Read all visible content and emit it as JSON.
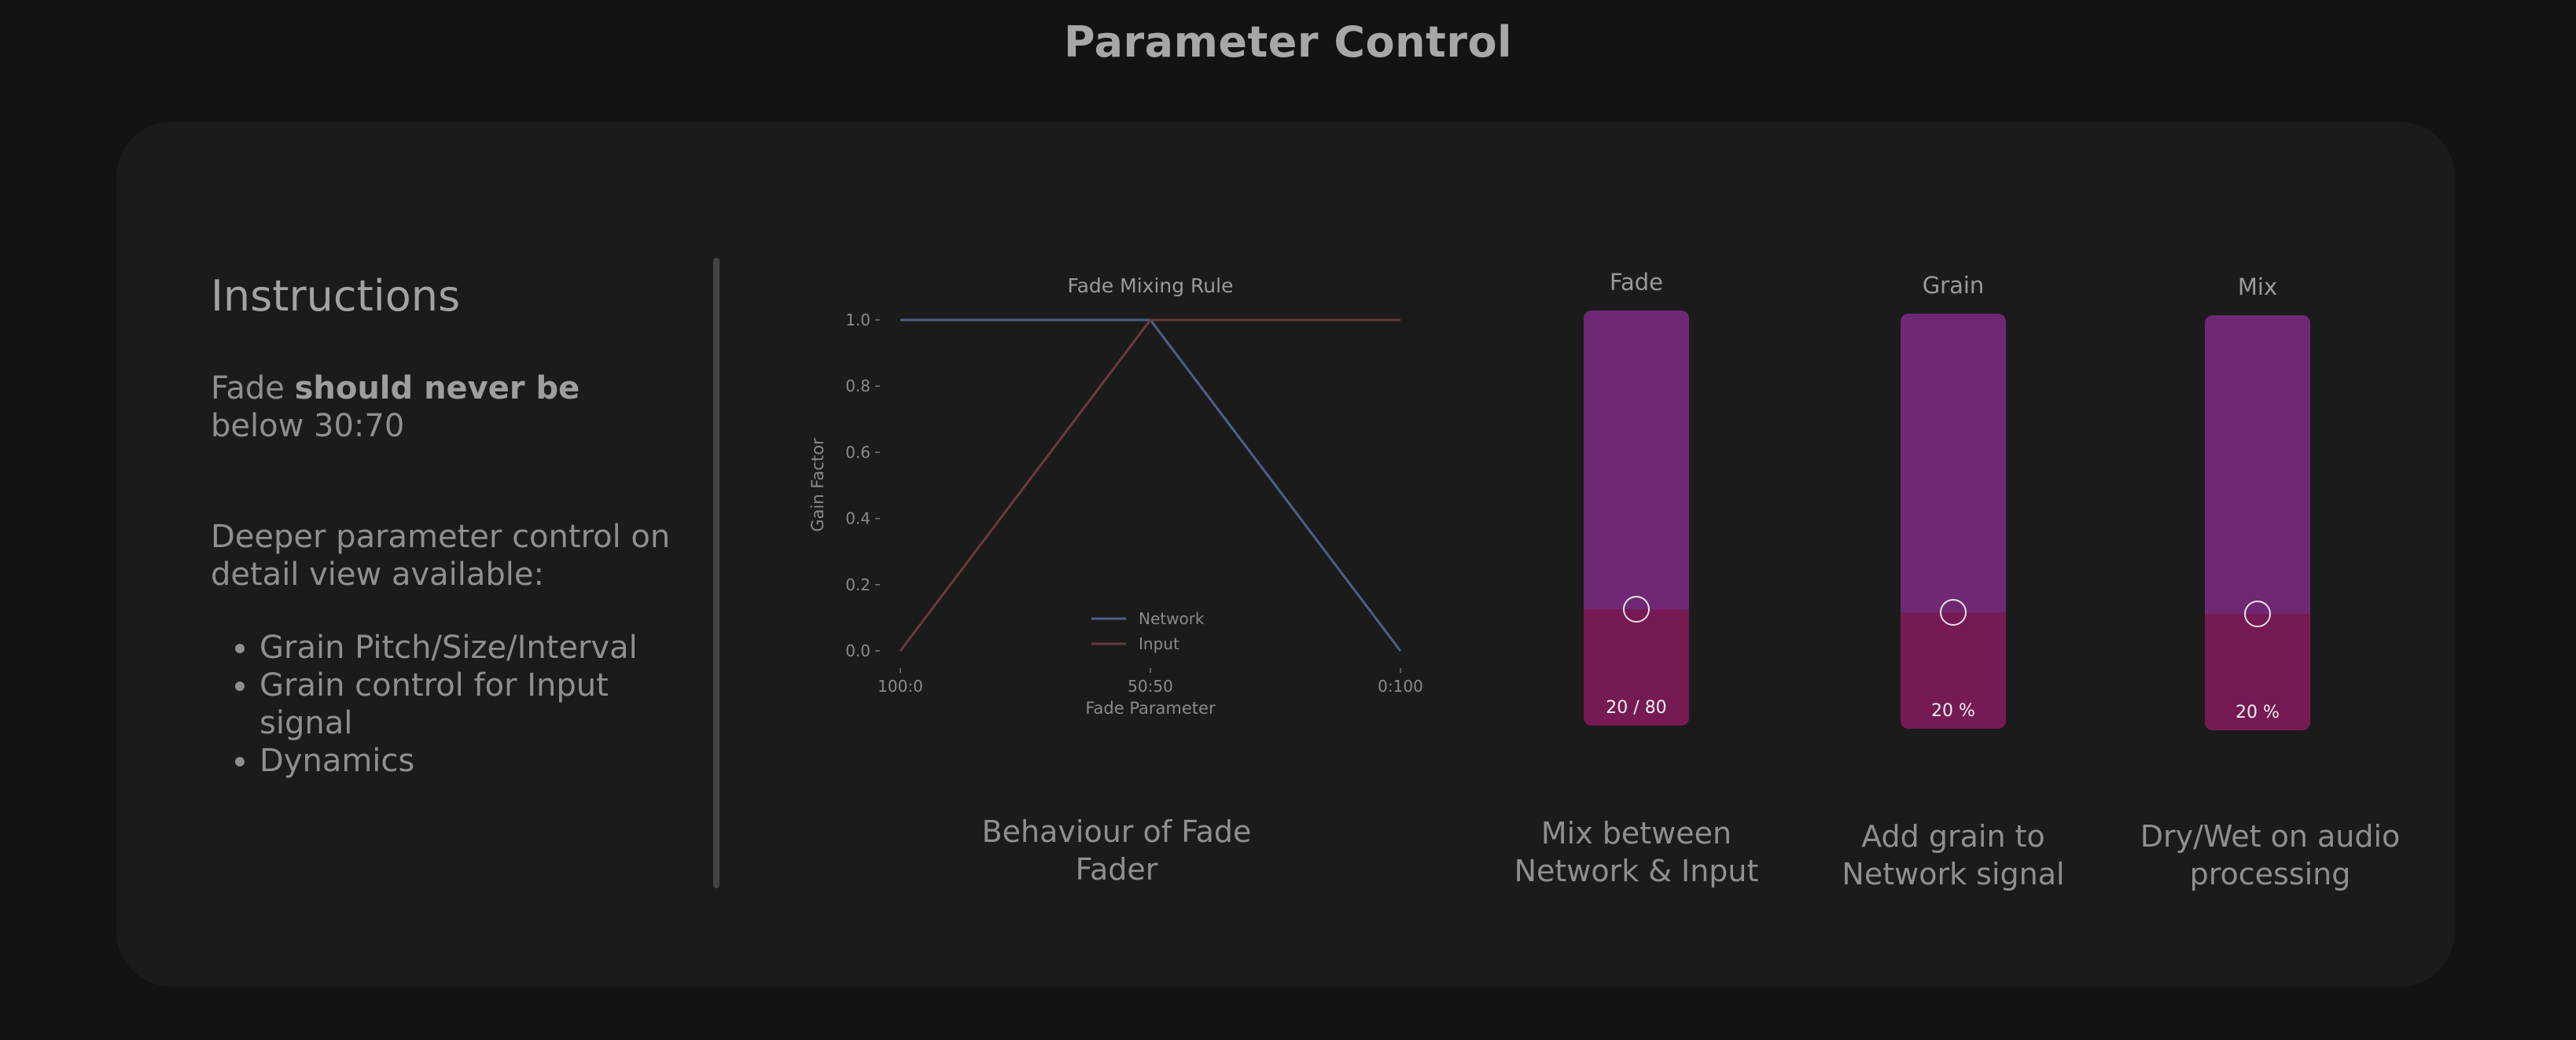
{
  "page_title": "Parameter Control",
  "instructions": {
    "heading": "Instructions",
    "line1_prefix": "Fade ",
    "line1_bold": "should never be",
    "line1_suffix": "below 30:70",
    "line2": "Deeper parameter control on detail view available:",
    "bullets": [
      "Grain Pitch/Size/Interval",
      "Grain control for Input signal",
      "Dynamics"
    ]
  },
  "chart_data": {
    "type": "line",
    "title": "Fade Mixing Rule",
    "xlabel": "Fade Parameter",
    "ylabel": "Gain Factor",
    "x_ticks": [
      "100:0",
      "50:50",
      "0:100"
    ],
    "x": [
      0,
      50,
      100
    ],
    "ylim": [
      0,
      1
    ],
    "y_ticks": [
      "0.0",
      "0.2",
      "0.4",
      "0.6",
      "0.8",
      "1.0"
    ],
    "series": [
      {
        "name": "Network",
        "values": [
          1.0,
          1.0,
          0.0
        ],
        "color": "#4f5f86"
      },
      {
        "name": "Input",
        "values": [
          0.0,
          1.0,
          1.0
        ],
        "color": "#6a3b3b"
      }
    ],
    "legend": "lower-center",
    "grid": false
  },
  "chart_caption": "Behaviour of Fade Fader",
  "faders": [
    {
      "label": "Fade",
      "value_text": "20 / 80",
      "level": 0.28,
      "caption": "Mix between Network & Input"
    },
    {
      "label": "Grain",
      "value_text": "20 %",
      "level": 0.28,
      "caption": "Add grain to Network signal"
    },
    {
      "label": "Mix",
      "value_text": "20  %",
      "level": 0.28,
      "caption": "Dry/Wet on audio processing"
    }
  ],
  "colors": {
    "fader_track": "#6f2874",
    "fader_fill": "#761a54",
    "background": "#131313",
    "panel": "#1b1b1b"
  }
}
